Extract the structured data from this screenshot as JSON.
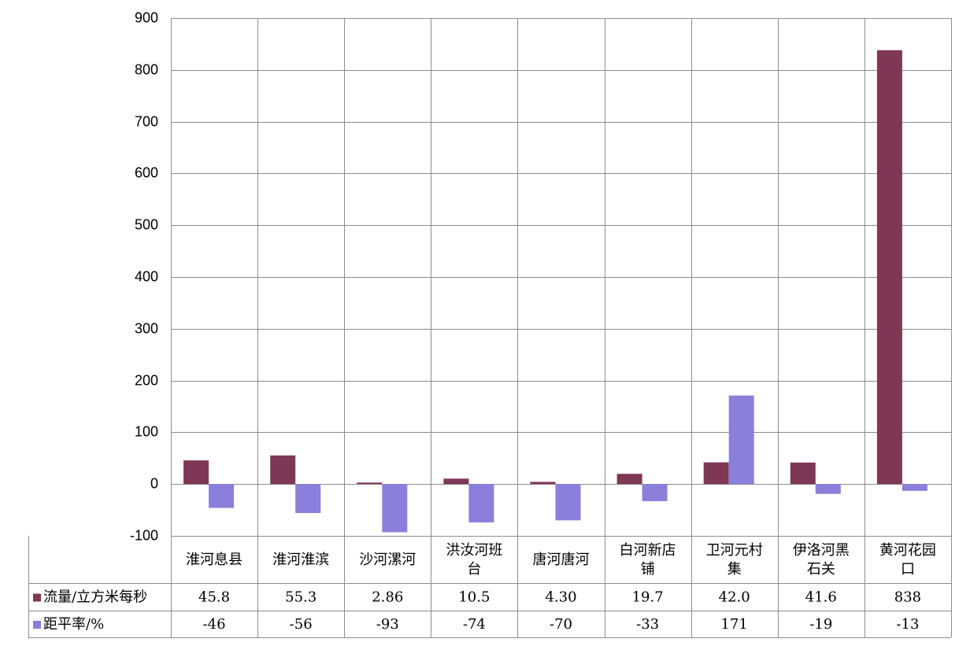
{
  "chart_data": {
    "type": "bar",
    "categories": [
      [
        "淮河息县"
      ],
      [
        "淮河淮滨"
      ],
      [
        "沙河漯河"
      ],
      [
        "洪汝河班",
        "台"
      ],
      [
        "唐河唐河"
      ],
      [
        "白河新店",
        "铺"
      ],
      [
        "卫河元村",
        "集"
      ],
      [
        "伊洛河黑",
        "石关"
      ],
      [
        "黄河花园",
        "口"
      ]
    ],
    "series": [
      {
        "name": "流量/立方米每秒",
        "color": "#7F3756",
        "values": [
          45.8,
          55.3,
          2.86,
          10.5,
          4.3,
          19.7,
          42.0,
          41.6,
          838
        ],
        "table_text": [
          "45.8",
          "55.3",
          "2.86",
          "10.5",
          "4.30",
          "19.7",
          "42.0",
          "41.6",
          "838"
        ]
      },
      {
        "name": "距平率/%",
        "color": "#8B7FDB",
        "values": [
          -46,
          -56,
          -93,
          -74,
          -70,
          -33,
          171,
          -19,
          -13
        ],
        "table_text": [
          "-46",
          "-56",
          "-93",
          "-74",
          "-70",
          "-33",
          "171",
          "-19",
          "-13"
        ]
      }
    ],
    "ylim": [
      -100,
      900
    ],
    "yticks": [
      "900",
      "800",
      "700",
      "600",
      "500",
      "400",
      "300",
      "200",
      "100",
      "0",
      "-100"
    ],
    "grid": true,
    "legend": "data table"
  }
}
